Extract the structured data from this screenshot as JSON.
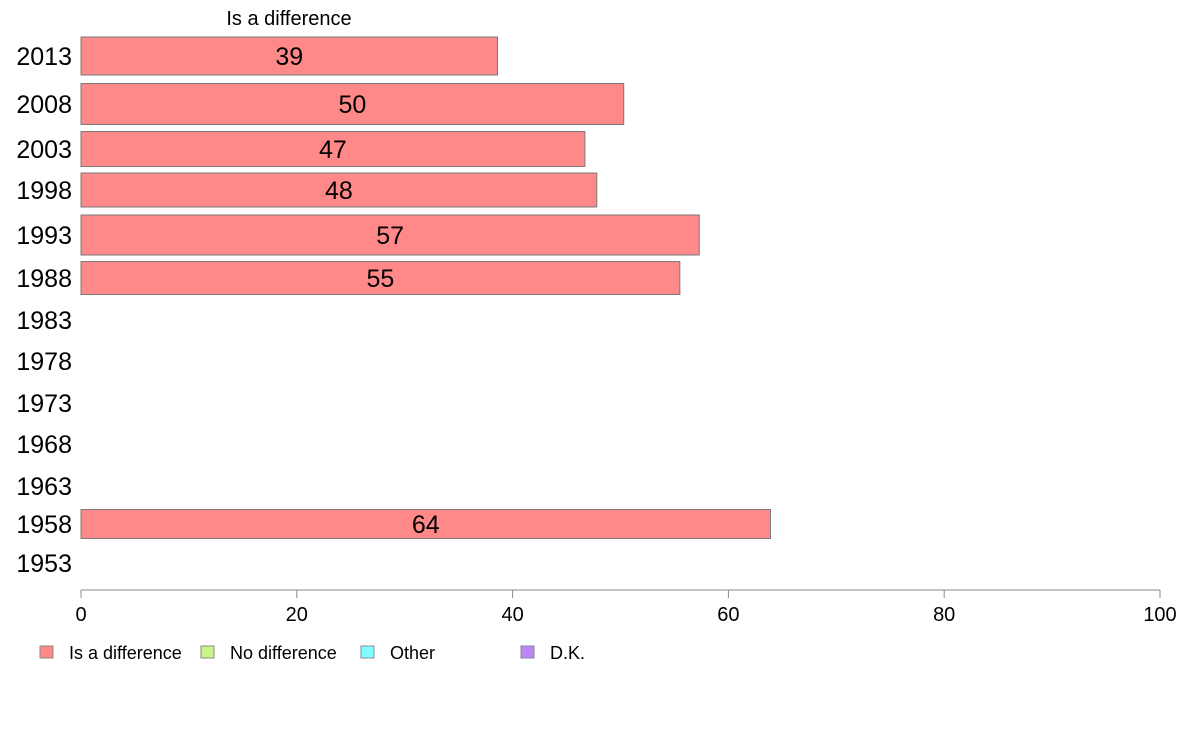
{
  "chart_data": {
    "type": "bar",
    "orientation": "horizontal",
    "title": "Is a difference",
    "categories": [
      "2013",
      "2008",
      "2003",
      "1998",
      "1993",
      "1988",
      "1983",
      "1978",
      "1973",
      "1968",
      "1963",
      "1958",
      "1953"
    ],
    "series": [
      {
        "name": "Is a difference",
        "color": "#ff8888",
        "values": [
          39,
          50,
          47,
          48,
          57,
          55,
          null,
          null,
          null,
          null,
          null,
          64,
          null
        ],
        "plotted": [
          38.6,
          50.3,
          46.7,
          47.8,
          57.3,
          55.5,
          null,
          null,
          null,
          null,
          null,
          63.9,
          null
        ]
      }
    ],
    "xlim": [
      0,
      100
    ],
    "xticks": [
      0,
      20,
      40,
      60,
      80,
      100
    ],
    "legend": {
      "position": "bottom",
      "items": [
        {
          "label": "Is a difference",
          "color": "#ff8888"
        },
        {
          "label": "No difference",
          "color": "#c8f58a"
        },
        {
          "label": "Other",
          "color": "#80ffff"
        },
        {
          "label": "D.K.",
          "color": "#b888f8"
        }
      ]
    },
    "grid": false
  }
}
